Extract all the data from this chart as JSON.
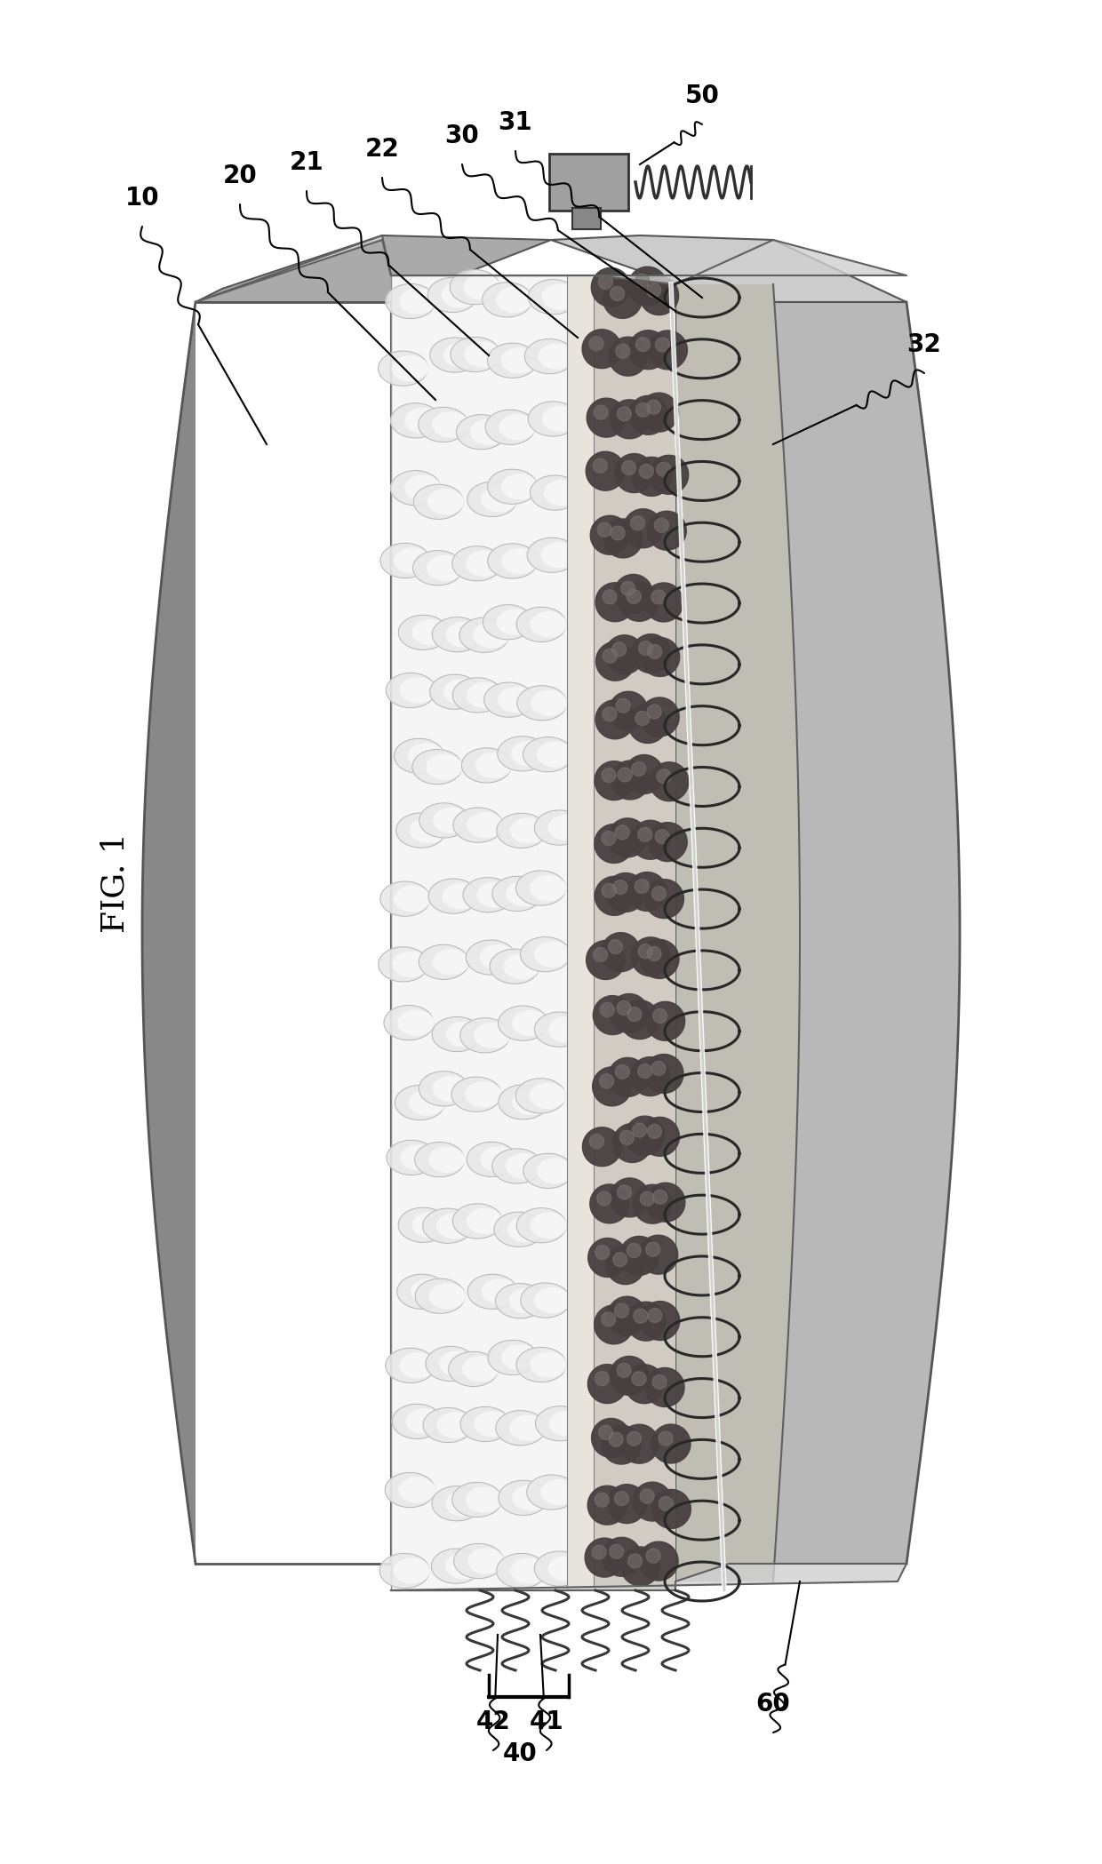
{
  "title": "FIG. 1",
  "fig_width": 12.4,
  "fig_height": 20.98,
  "dpi": 100,
  "background_color": "#ffffff",
  "back_plate_color": "#8c8c8c",
  "back_plate_edge": "#555555",
  "front_shell_color": "#b0b0b0",
  "front_shell_edge": "#555555",
  "foam_layer_color": "#f2f2f2",
  "bead_color": "#4a4a4a",
  "bead_highlight": "#888888",
  "coil_color": "#303030",
  "label_fontsize": 20,
  "title_fontsize": 26
}
